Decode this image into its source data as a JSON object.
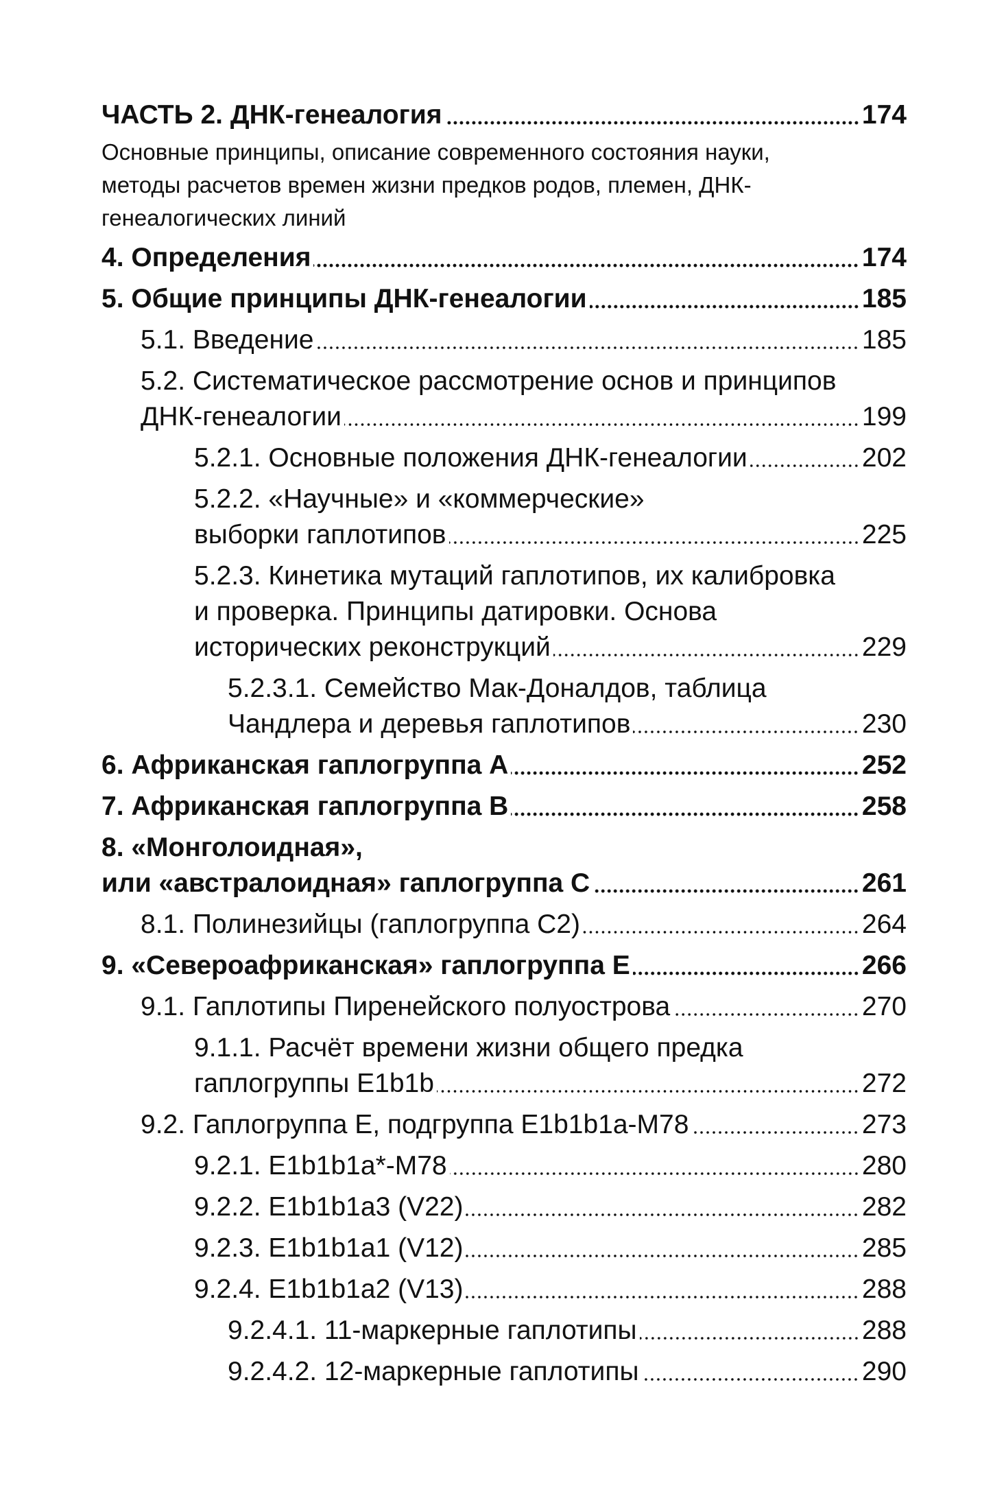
{
  "part": {
    "title": "ЧАСТЬ 2. ДНК-генеалогия",
    "page": "174",
    "description": [
      "Основные принципы, описание современного состояния науки,",
      "методы расчетов времен жизни предков родов, племен, ДНК-",
      "генеалогических линий"
    ]
  },
  "entries": [
    {
      "level": 0,
      "bold": true,
      "lines": [
        "4. Определения"
      ],
      "page": "174"
    },
    {
      "level": 0,
      "bold": true,
      "lines": [
        "5. Общие принципы ДНК-генеалогии"
      ],
      "page": "185"
    },
    {
      "level": 1,
      "bold": false,
      "lines": [
        "5.1. Введение"
      ],
      "page": "185"
    },
    {
      "level": 1,
      "bold": false,
      "lines": [
        "5.2. Систематическое рассмотрение основ и  принципов",
        "ДНК-генеалогии"
      ],
      "page": "199"
    },
    {
      "level": 2,
      "bold": false,
      "lines": [
        "5.2.1. Основные положения ДНК-генеалогии"
      ],
      "page": "202"
    },
    {
      "level": 2,
      "bold": false,
      "lines": [
        "5.2.2. «Научные» и «коммерческие»",
        "выборки гаплотипов"
      ],
      "page": "225"
    },
    {
      "level": 2,
      "bold": false,
      "lines": [
        "5.2.3. Кинетика мутаций гаплотипов, их калибровка",
        "и проверка. Принципы датировки. Основа",
        "исторических реконструкций"
      ],
      "page": "229"
    },
    {
      "level": 3,
      "bold": false,
      "lines": [
        "5.2.3.1. Семейство Мак-Доналдов, таблица",
        "Чандлера и деревья гаплотипов"
      ],
      "page": "230"
    },
    {
      "level": 0,
      "bold": true,
      "lines": [
        "6. Африканская гаплогруппа А"
      ],
      "page": "252"
    },
    {
      "level": 0,
      "bold": true,
      "lines": [
        "7. Африканская гаплогруппа В"
      ],
      "page": "258"
    },
    {
      "level": 0,
      "bold": true,
      "lines": [
        "8. «Монголоидная»,",
        "или «австралоидная» гаплогруппа С"
      ],
      "page": "261"
    },
    {
      "level": 1,
      "bold": false,
      "lines": [
        "8.1. Полинезийцы (гаплогруппа С2)"
      ],
      "page": "264"
    },
    {
      "level": 0,
      "bold": true,
      "lines": [
        "9. «Североафриканская» гаплогруппа Е"
      ],
      "page": "266"
    },
    {
      "level": 1,
      "bold": false,
      "lines": [
        "9.1. Гаплотипы Пиренейского полуострова"
      ],
      "page": "270"
    },
    {
      "level": 2,
      "bold": false,
      "lines": [
        "9.1.1. Расчёт времени жизни общего предка",
        "гаплогруппы E1b1b"
      ],
      "page": "272"
    },
    {
      "level": 1,
      "bold": false,
      "lines": [
        "9.2. Гаплогруппа Е, подгруппа E1b1b1a-M78"
      ],
      "page": "273"
    },
    {
      "level": 2,
      "bold": false,
      "lines": [
        "9.2.1. E1b1b1a*-M78"
      ],
      "page": "280"
    },
    {
      "level": 2,
      "bold": false,
      "lines": [
        "9.2.2. E1b1b1a3 (V22)"
      ],
      "page": "282"
    },
    {
      "level": 2,
      "bold": false,
      "lines": [
        "9.2.3. E1b1b1a1 (V12)"
      ],
      "page": "285"
    },
    {
      "level": 2,
      "bold": false,
      "lines": [
        "9.2.4. E1b1b1a2 (V13)"
      ],
      "page": "288"
    },
    {
      "level": 3,
      "bold": false,
      "lines": [
        "9.2.4.1. 11-маркерные гаплотипы"
      ],
      "page": "288"
    },
    {
      "level": 3,
      "bold": false,
      "lines": [
        "9.2.4.2. 12-маркерные гаплотипы"
      ],
      "page": "290"
    }
  ]
}
